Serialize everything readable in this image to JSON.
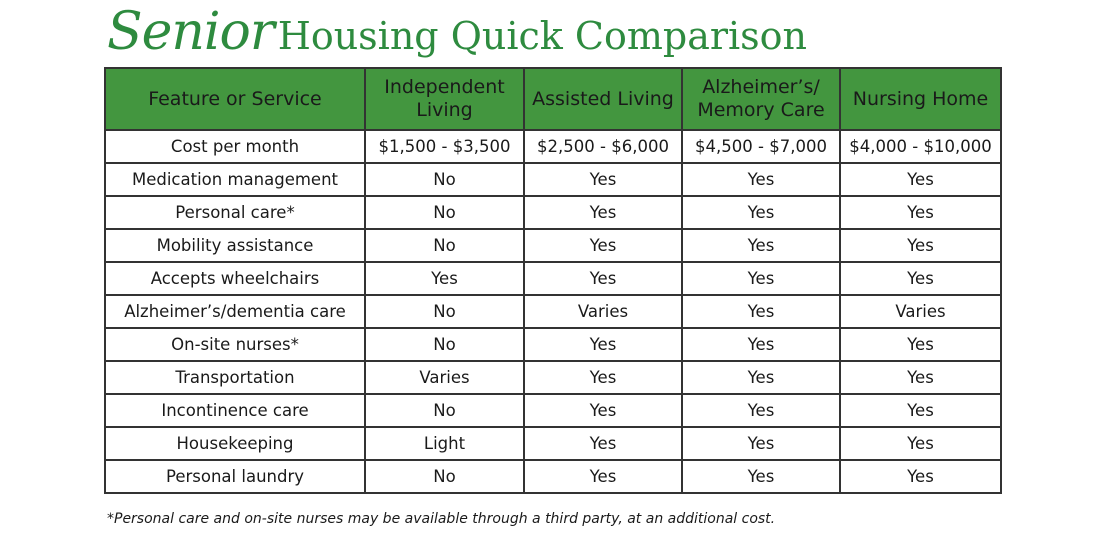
{
  "title": {
    "script_word": "Senior",
    "rest": "Housing Quick Comparison"
  },
  "table": {
    "headers": [
      "Feature or Service",
      "Independent Living",
      "Assisted Living",
      "Alzheimer’s/ Memory Care",
      "Nursing Home"
    ],
    "rows": [
      [
        "Cost per month",
        "$1,500 - $3,500",
        "$2,500 - $6,000",
        "$4,500 - $7,000",
        "$4,000 - $10,000"
      ],
      [
        "Medication management",
        "No",
        "Yes",
        "Yes",
        "Yes"
      ],
      [
        "Personal care*",
        "No",
        "Yes",
        "Yes",
        "Yes"
      ],
      [
        "Mobility assistance",
        "No",
        "Yes",
        "Yes",
        "Yes"
      ],
      [
        "Accepts wheelchairs",
        "Yes",
        "Yes",
        "Yes",
        "Yes"
      ],
      [
        "Alzheimer’s/dementia care",
        "No",
        "Varies",
        "Yes",
        "Varies"
      ],
      [
        "On-site nurses*",
        "No",
        "Yes",
        "Yes",
        "Yes"
      ],
      [
        "Transportation",
        "Varies",
        "Yes",
        "Yes",
        "Yes"
      ],
      [
        "Incontinence care",
        "No",
        "Yes",
        "Yes",
        "Yes"
      ],
      [
        "Housekeeping",
        "Light",
        "Yes",
        "Yes",
        "Yes"
      ],
      [
        "Personal laundry",
        "No",
        "Yes",
        "Yes",
        "Yes"
      ]
    ]
  },
  "footnote": "*Personal care and on-site nurses may be available through a third party, at an additional cost.",
  "colors": {
    "header_bg": "#43963f",
    "title_green": "#2e8b3f",
    "border": "#333333"
  }
}
